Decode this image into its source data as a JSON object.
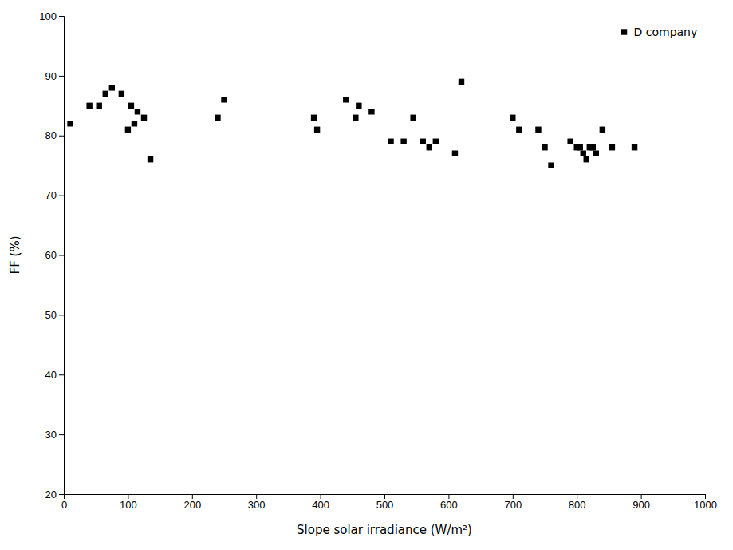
{
  "chart_data": {
    "type": "scatter",
    "xlabel": "Slope solar irradiance (W/m²)",
    "ylabel": "FF (%)",
    "x": [
      10,
      40,
      55,
      65,
      75,
      90,
      100,
      105,
      110,
      115,
      125,
      135,
      240,
      250,
      390,
      395,
      440,
      455,
      460,
      480,
      510,
      530,
      545,
      560,
      570,
      580,
      610,
      620,
      700,
      710,
      740,
      750,
      760,
      790,
      800,
      805,
      810,
      815,
      820,
      825,
      830,
      840,
      855,
      890
    ],
    "series": [
      {
        "name": "D company",
        "color": "#000000",
        "marker": "square",
        "values": [
          82,
          85,
          85,
          87,
          88,
          87,
          81,
          85,
          82,
          84,
          83,
          76,
          83,
          86,
          83,
          81,
          86,
          83,
          85,
          84,
          79,
          79,
          83,
          79,
          78,
          79,
          77,
          89,
          83,
          81,
          81,
          78,
          75,
          79,
          78,
          78,
          77,
          76,
          78,
          78,
          77,
          81,
          78,
          78
        ]
      }
    ],
    "xlim": [
      0,
      1000
    ],
    "ylim": [
      20,
      100
    ],
    "xticks": [
      0,
      100,
      200,
      300,
      400,
      500,
      600,
      700,
      800,
      900,
      1000
    ],
    "yticks": [
      20,
      30,
      40,
      50,
      60,
      70,
      80,
      90,
      100
    ],
    "legend": "upper right"
  }
}
